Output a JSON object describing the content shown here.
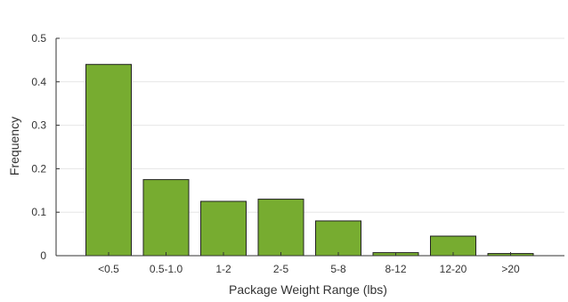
{
  "chart_data": {
    "type": "bar",
    "categories": [
      "<0.5",
      "0.5-1.0",
      "1-2",
      "2-5",
      "5-8",
      "8-12",
      "12-20",
      ">20"
    ],
    "values": [
      0.44,
      0.175,
      0.125,
      0.13,
      0.08,
      0.007,
      0.045,
      0.005
    ],
    "xlabel": "Package Weight Range (lbs)",
    "ylabel": "Frequency",
    "ylim": [
      0,
      0.5
    ],
    "yticks": [
      "0",
      "0.1",
      "0.2",
      "0.3",
      "0.4",
      "0.5"
    ],
    "grid": "horizontal",
    "colors": {
      "bar": "#77ac30",
      "bar_edge": "#222222",
      "grid": "#e6e6e6",
      "axis": "#333333"
    }
  }
}
